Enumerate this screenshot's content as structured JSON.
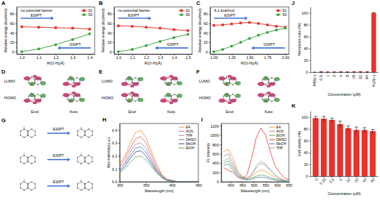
{
  "chart_data": [
    {
      "type": "line",
      "panel_label": "A",
      "x_label": "R(O-H)(Å)",
      "y_label": "Relative energy (kcal/mol)",
      "x": [
        1.0,
        1.1,
        1.2,
        1.3,
        1.4
      ],
      "series": [
        {
          "name": "S1",
          "color": "#e8312a",
          "marker": "square",
          "values": [
            53,
            52,
            51,
            50,
            48
          ]
        },
        {
          "name": "S0",
          "color": "#3aa33a",
          "marker": "circle",
          "values": [
            0,
            6,
            15,
            26,
            38
          ]
        }
      ],
      "xlim": [
        0.97,
        1.43
      ],
      "xticks": [
        {
          "value": 1,
          "label": "1.0"
        },
        1.1,
        1.2,
        1.3,
        1.4
      ],
      "ylim": [
        -5,
        95
      ],
      "yticks": [
        0,
        20,
        40,
        60,
        80
      ],
      "legend": "upper right",
      "annotations": [
        "no potential barrier",
        "ESIPT",
        "GSIPT"
      ]
    },
    {
      "type": "line",
      "panel_label": "B",
      "x_label": "R(O-H)(Å)",
      "y_label": "Relative energy (kcal/mol)",
      "x": [
        1.0,
        1.1,
        1.2,
        1.3,
        1.4,
        1.5
      ],
      "series": [
        {
          "name": "S1",
          "color": "#e8312a",
          "marker": "square",
          "values": [
            55,
            54,
            52,
            50,
            47,
            45
          ]
        },
        {
          "name": "S0",
          "color": "#3aa33a",
          "marker": "circle",
          "values": [
            0,
            5,
            13,
            22,
            30,
            37
          ]
        }
      ],
      "xlim": [
        0.97,
        1.53
      ],
      "xticks": [
        {
          "value": 1,
          "label": "1.0"
        },
        1.1,
        1.2,
        1.3,
        1.4,
        1.5
      ],
      "ylim": [
        -5,
        95
      ],
      "yticks": [
        0,
        20,
        40,
        60,
        80
      ],
      "legend": "upper right",
      "annotations": [
        "no potential barrier",
        "ESIPT",
        "GSIPT"
      ]
    },
    {
      "type": "line",
      "panel_label": "C",
      "x_label": "R(O-H)(Å)",
      "y_label": "Relative energy (kcal/mol)",
      "x": [
        1.0,
        1.125,
        1.25,
        1.375,
        1.5,
        1.625,
        1.75,
        1.875,
        2.0
      ],
      "series": [
        {
          "name": "S1",
          "color": "#e8312a",
          "marker": "square",
          "values": [
            56,
            57,
            59,
            61,
            62,
            60,
            57,
            54,
            52
          ]
        },
        {
          "name": "S0",
          "color": "#3aa33a",
          "marker": "circle",
          "values": [
            0,
            5,
            12,
            20,
            28,
            35,
            41,
            46,
            50
          ]
        }
      ],
      "xlim": [
        0.95,
        2.05
      ],
      "xticks": [
        {
          "value": 1,
          "label": "1.00"
        },
        1.25,
        {
          "value": 1.5,
          "label": "1.50"
        },
        1.75,
        {
          "value": 2,
          "label": "2.00"
        }
      ],
      "ylim": [
        -5,
        95
      ],
      "yticks": [
        0,
        20,
        40,
        60,
        80
      ],
      "legend": "upper right",
      "annotations": [
        "6.1 kcal/mol",
        "ESIPT",
        "GSIPT"
      ]
    },
    {
      "type": "line",
      "panel_label": "H",
      "x_label": "Wavelength (nm)",
      "y_label": "Abs Intensity(a.u.)",
      "x": [
        300,
        310,
        320,
        330,
        340,
        350,
        360,
        370,
        380,
        390,
        400,
        410,
        420,
        430,
        440,
        450
      ],
      "series": [
        {
          "name": "EA",
          "color": "#f28e2b",
          "values": [
            0.14,
            0.2,
            0.3,
            0.38,
            0.4,
            0.34,
            0.24,
            0.14,
            0.06,
            0.02,
            0.01,
            0,
            0,
            0,
            0,
            0
          ]
        },
        {
          "name": "ACN",
          "color": "#e15759",
          "values": [
            0.12,
            0.18,
            0.26,
            0.33,
            0.35,
            0.3,
            0.21,
            0.12,
            0.05,
            0.02,
            0.01,
            0,
            0,
            0,
            0,
            0
          ]
        },
        {
          "name": "THF",
          "color": "#b07aa1",
          "values": [
            0.11,
            0.15,
            0.23,
            0.29,
            0.3,
            0.26,
            0.18,
            0.1,
            0.05,
            0.02,
            0.01,
            0,
            0,
            0,
            0,
            0
          ]
        },
        {
          "name": "DMSO",
          "color": "#4e79a7",
          "values": [
            0.09,
            0.14,
            0.2,
            0.26,
            0.27,
            0.23,
            0.16,
            0.09,
            0.04,
            0.01,
            0.01,
            0,
            0,
            0,
            0,
            0
          ]
        },
        {
          "name": "MeOH",
          "color": "#1f3a93",
          "values": [
            0.08,
            0.12,
            0.18,
            0.23,
            0.24,
            0.2,
            0.14,
            0.08,
            0.04,
            0.01,
            0,
            0,
            0,
            0,
            0,
            0
          ]
        },
        {
          "name": "EtOH",
          "color": "#59a14f",
          "values": [
            0.07,
            0.1,
            0.15,
            0.19,
            0.2,
            0.17,
            0.12,
            0.07,
            0.03,
            0.01,
            0,
            0,
            0,
            0,
            0,
            0
          ]
        }
      ],
      "xlim": [
        300,
        450
      ],
      "xticks": [
        300,
        350,
        400,
        450
      ],
      "ylim": [
        0,
        0.45
      ],
      "yticks": [
        {
          "value": 0,
          "label": "0.0"
        },
        0.1,
        0.2,
        0.3,
        0.4
      ],
      "legend": "upper right"
    },
    {
      "type": "line",
      "panel_label": "I",
      "x_label": "Wavelength (nm)",
      "y_label": "FL Intensity",
      "x": [
        370,
        390,
        410,
        430,
        450,
        470,
        490,
        510,
        530,
        550,
        570,
        590,
        610,
        630,
        650
      ],
      "series": [
        {
          "name": "EA",
          "color": "#f28e2b",
          "values": [
            650,
            700,
            500,
            250,
            120,
            80,
            120,
            200,
            250,
            220,
            160,
            100,
            50,
            25,
            10
          ]
        },
        {
          "name": "ACN",
          "color": "#b07aa1",
          "values": [
            550,
            600,
            400,
            200,
            100,
            70,
            150,
            300,
            400,
            350,
            250,
            150,
            80,
            40,
            15
          ]
        },
        {
          "name": "EtOH",
          "color": "#59a14f",
          "values": [
            400,
            450,
            300,
            150,
            80,
            50,
            80,
            120,
            150,
            130,
            90,
            60,
            30,
            15,
            5
          ]
        },
        {
          "name": "DMSO",
          "color": "#e8312a",
          "values": [
            300,
            250,
            200,
            100,
            60,
            150,
            500,
            950,
            1150,
            1000,
            650,
            350,
            200,
            90,
            40
          ]
        },
        {
          "name": "MeOH",
          "color": "#4e79a7",
          "values": [
            350,
            380,
            250,
            120,
            60,
            40,
            60,
            90,
            100,
            90,
            60,
            40,
            20,
            10,
            5
          ]
        },
        {
          "name": "THF",
          "color": "#76b7b2",
          "values": [
            450,
            500,
            350,
            180,
            90,
            60,
            150,
            350,
            450,
            380,
            260,
            150,
            70,
            30,
            10
          ]
        }
      ],
      "xlim": [
        360,
        650
      ],
      "xticks": [
        400,
        450,
        500,
        550,
        600,
        650
      ],
      "ylim": [
        0,
        1250
      ],
      "yticks": [
        0,
        200,
        400,
        600,
        800,
        1000,
        1200
      ],
      "legend": "upper right"
    },
    {
      "type": "bar",
      "panel_label": "J",
      "x_label": "Concentration (μM)",
      "y_label": "Hemolysis ratio (%)",
      "categories": [
        "PBS(-)",
        "0.5",
        "1",
        "2",
        "4",
        "8",
        "16",
        "32",
        "64",
        "H₂O(+)"
      ],
      "values": [
        0,
        0.8,
        0.5,
        0.6,
        0.7,
        0.6,
        0.8,
        0.9,
        0.8,
        100
      ],
      "errors": [
        0.2,
        0.3,
        0.2,
        0.2,
        0.3,
        0.2,
        0.3,
        0.3,
        0.3,
        0.5
      ],
      "color": "#e8312a",
      "ylim": [
        0,
        110
      ],
      "yticks": [
        0,
        20,
        40,
        60,
        80,
        100
      ]
    },
    {
      "type": "bar",
      "panel_label": "K",
      "x_label": "Concentration (μM)",
      "y_label": "Cell vitality (%)",
      "categories": [
        "0",
        "1.25",
        "2.5",
        "5",
        "10",
        "20",
        "40",
        "80"
      ],
      "values": [
        98,
        97,
        95,
        88,
        81,
        78,
        78,
        76
      ],
      "errors": [
        3,
        4,
        3,
        5,
        4,
        5,
        4,
        3
      ],
      "color": "#e8312a",
      "ylim": [
        0,
        110
      ],
      "yticks": [
        0,
        20,
        40,
        60,
        80,
        100
      ]
    }
  ],
  "orbital_panels": [
    {
      "panel_label": "D",
      "rows": [
        "LUMO",
        "HOMO"
      ],
      "columns": [
        "Enol",
        "Keto"
      ]
    },
    {
      "panel_label": "E",
      "rows": [
        "LUMO",
        "HOMO"
      ],
      "columns": [
        "Enol",
        "Keto"
      ]
    },
    {
      "panel_label": "F",
      "rows": [
        "LUMO",
        "HOMO"
      ],
      "columns": [
        "Enol",
        "Keto"
      ]
    }
  ],
  "scheme": {
    "panel_label": "G",
    "arrows": [
      "ESIPT",
      "ESIPT",
      "ESIPT"
    ]
  }
}
